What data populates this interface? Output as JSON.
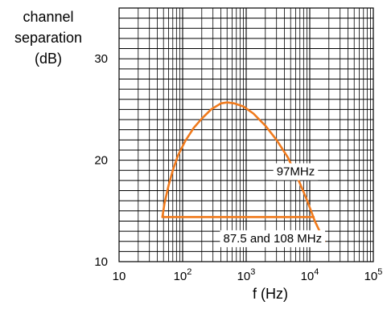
{
  "chart_data": {
    "type": "line",
    "ylabel_lines": [
      "channel",
      "separation",
      "(dB)"
    ],
    "xlabel": "f (Hz)",
    "x_scale": "log",
    "xlim": [
      10,
      100000
    ],
    "ylim": [
      10,
      35
    ],
    "x_tick_labels": [
      {
        "value": 10,
        "base": "10",
        "exp": ""
      },
      {
        "value": 100,
        "base": "10",
        "exp": "2"
      },
      {
        "value": 1000,
        "base": "10",
        "exp": "3"
      },
      {
        "value": 10000,
        "base": "10",
        "exp": "4"
      },
      {
        "value": 100000,
        "base": "10",
        "exp": "5"
      }
    ],
    "y_ticks": [
      10,
      20,
      30
    ],
    "grid": true,
    "line_color": "#f07a1c",
    "series": [
      {
        "name": "97MHz",
        "x": [
          48,
          52,
          60,
          70,
          85,
          110,
          150,
          200,
          280,
          400,
          500,
          650,
          900,
          1300,
          2000,
          3000,
          4500,
          6500,
          9000,
          12000,
          17000
        ],
        "y": [
          14.4,
          15.8,
          17.5,
          19.0,
          20.5,
          21.9,
          23.2,
          24.1,
          25.0,
          25.6,
          25.7,
          25.6,
          25.3,
          24.6,
          23.4,
          22.0,
          20.3,
          18.2,
          16.1,
          14.0,
          12.0
        ]
      },
      {
        "name": "87.5 and 108 MHz",
        "x": [
          48,
          11500
        ],
        "y": [
          14.4,
          14.4
        ]
      }
    ],
    "annotations": [
      {
        "text": "97MHz",
        "x": 6000,
        "y": 18.9
      },
      {
        "text": "87.5 and 108 MHz",
        "x": 2600,
        "y": 12.3
      }
    ]
  }
}
